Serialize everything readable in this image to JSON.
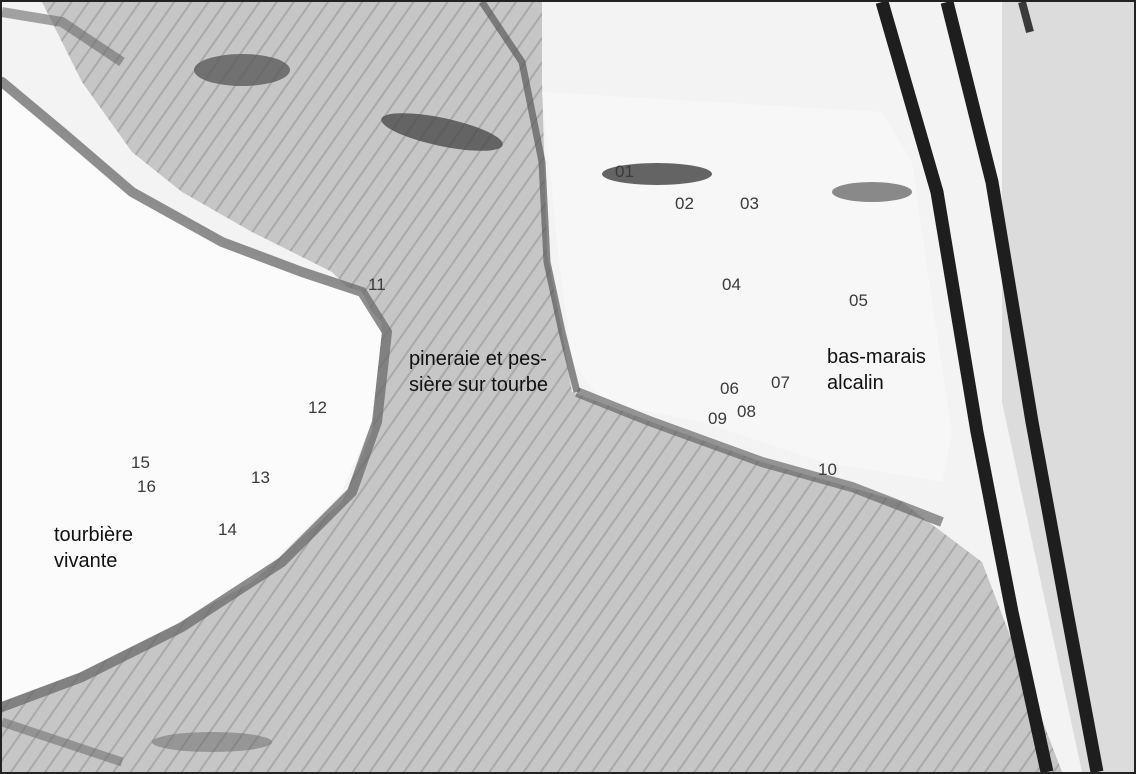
{
  "map": {
    "points": [
      "01",
      "02",
      "03",
      "04",
      "05",
      "06",
      "07",
      "08",
      "09",
      "10",
      "11",
      "12",
      "13",
      "14",
      "15",
      "16"
    ],
    "zones": {
      "pineraie_line1": "pineraie et pes-",
      "pineraie_line2": "sière sur tourbe",
      "basmarais_line1": "bas-marais",
      "basmarais_line2": "alcalin",
      "tourbiere_line1": "tourbière",
      "tourbiere_line2": "vivante"
    }
  },
  "colors": {
    "peat_bog": "#fbfbfb",
    "forest": "#c9c9c9",
    "edge": "#555555",
    "ditch": "#1e1e1e"
  }
}
